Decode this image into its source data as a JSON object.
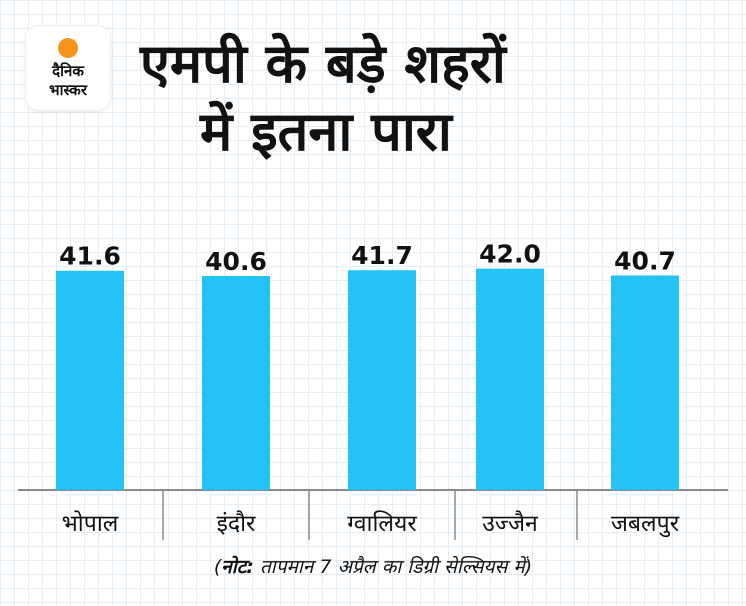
{
  "logo": {
    "line1": "दैनिक",
    "line2": "भास्कर"
  },
  "title": {
    "line1": "एमपी के बड़े शहरों",
    "line2": "में इतना पारा"
  },
  "note": {
    "prefix": "(",
    "label": "नोट:",
    "text": " तापमान 7 अप्रैल का डिग्री सेल्सियस में)"
  },
  "colors": {
    "bar": "#23c4f5",
    "axis": "#8a8a8a",
    "text": "#111111",
    "brand_sun": "#f7941d"
  },
  "chart_data": {
    "type": "bar",
    "categories": [
      "भोपाल",
      "इंदौर",
      "ग्वालियर",
      "उज्जैन",
      "जबलपुर"
    ],
    "values": [
      41.6,
      40.6,
      41.7,
      42.0,
      40.7
    ],
    "value_labels": [
      "41.6",
      "40.6",
      "41.7",
      "42.0",
      "40.7"
    ],
    "title": "एमपी के बड़े शहरों में इतना पारा",
    "xlabel": "",
    "ylabel": "",
    "ylim": [
      0,
      42.5
    ],
    "grid": false,
    "legend": "none"
  }
}
